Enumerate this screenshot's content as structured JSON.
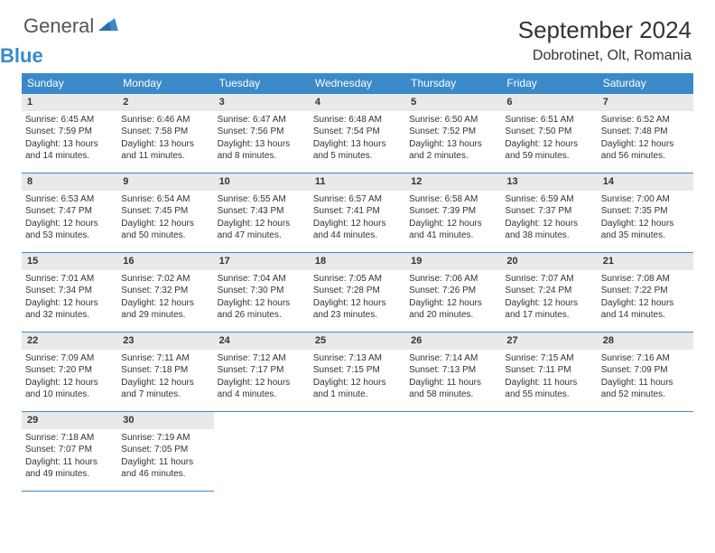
{
  "logo": {
    "general": "General",
    "blue": "Blue"
  },
  "title": "September 2024",
  "location": "Dobrotinet, Olt, Romania",
  "weekdays": [
    "Sunday",
    "Monday",
    "Tuesday",
    "Wednesday",
    "Thursday",
    "Friday",
    "Saturday"
  ],
  "colors": {
    "accent": "#3a8ac9",
    "daybg": "#e9e9e9"
  },
  "days": [
    {
      "n": "1",
      "sr": "6:45 AM",
      "ss": "7:59 PM",
      "dl": "13 hours and 14 minutes."
    },
    {
      "n": "2",
      "sr": "6:46 AM",
      "ss": "7:58 PM",
      "dl": "13 hours and 11 minutes."
    },
    {
      "n": "3",
      "sr": "6:47 AM",
      "ss": "7:56 PM",
      "dl": "13 hours and 8 minutes."
    },
    {
      "n": "4",
      "sr": "6:48 AM",
      "ss": "7:54 PM",
      "dl": "13 hours and 5 minutes."
    },
    {
      "n": "5",
      "sr": "6:50 AM",
      "ss": "7:52 PM",
      "dl": "13 hours and 2 minutes."
    },
    {
      "n": "6",
      "sr": "6:51 AM",
      "ss": "7:50 PM",
      "dl": "12 hours and 59 minutes."
    },
    {
      "n": "7",
      "sr": "6:52 AM",
      "ss": "7:48 PM",
      "dl": "12 hours and 56 minutes."
    },
    {
      "n": "8",
      "sr": "6:53 AM",
      "ss": "7:47 PM",
      "dl": "12 hours and 53 minutes."
    },
    {
      "n": "9",
      "sr": "6:54 AM",
      "ss": "7:45 PM",
      "dl": "12 hours and 50 minutes."
    },
    {
      "n": "10",
      "sr": "6:55 AM",
      "ss": "7:43 PM",
      "dl": "12 hours and 47 minutes."
    },
    {
      "n": "11",
      "sr": "6:57 AM",
      "ss": "7:41 PM",
      "dl": "12 hours and 44 minutes."
    },
    {
      "n": "12",
      "sr": "6:58 AM",
      "ss": "7:39 PM",
      "dl": "12 hours and 41 minutes."
    },
    {
      "n": "13",
      "sr": "6:59 AM",
      "ss": "7:37 PM",
      "dl": "12 hours and 38 minutes."
    },
    {
      "n": "14",
      "sr": "7:00 AM",
      "ss": "7:35 PM",
      "dl": "12 hours and 35 minutes."
    },
    {
      "n": "15",
      "sr": "7:01 AM",
      "ss": "7:34 PM",
      "dl": "12 hours and 32 minutes."
    },
    {
      "n": "16",
      "sr": "7:02 AM",
      "ss": "7:32 PM",
      "dl": "12 hours and 29 minutes."
    },
    {
      "n": "17",
      "sr": "7:04 AM",
      "ss": "7:30 PM",
      "dl": "12 hours and 26 minutes."
    },
    {
      "n": "18",
      "sr": "7:05 AM",
      "ss": "7:28 PM",
      "dl": "12 hours and 23 minutes."
    },
    {
      "n": "19",
      "sr": "7:06 AM",
      "ss": "7:26 PM",
      "dl": "12 hours and 20 minutes."
    },
    {
      "n": "20",
      "sr": "7:07 AM",
      "ss": "7:24 PM",
      "dl": "12 hours and 17 minutes."
    },
    {
      "n": "21",
      "sr": "7:08 AM",
      "ss": "7:22 PM",
      "dl": "12 hours and 14 minutes."
    },
    {
      "n": "22",
      "sr": "7:09 AM",
      "ss": "7:20 PM",
      "dl": "12 hours and 10 minutes."
    },
    {
      "n": "23",
      "sr": "7:11 AM",
      "ss": "7:18 PM",
      "dl": "12 hours and 7 minutes."
    },
    {
      "n": "24",
      "sr": "7:12 AM",
      "ss": "7:17 PM",
      "dl": "12 hours and 4 minutes."
    },
    {
      "n": "25",
      "sr": "7:13 AM",
      "ss": "7:15 PM",
      "dl": "12 hours and 1 minute."
    },
    {
      "n": "26",
      "sr": "7:14 AM",
      "ss": "7:13 PM",
      "dl": "11 hours and 58 minutes."
    },
    {
      "n": "27",
      "sr": "7:15 AM",
      "ss": "7:11 PM",
      "dl": "11 hours and 55 minutes."
    },
    {
      "n": "28",
      "sr": "7:16 AM",
      "ss": "7:09 PM",
      "dl": "11 hours and 52 minutes."
    },
    {
      "n": "29",
      "sr": "7:18 AM",
      "ss": "7:07 PM",
      "dl": "11 hours and 49 minutes."
    },
    {
      "n": "30",
      "sr": "7:19 AM",
      "ss": "7:05 PM",
      "dl": "11 hours and 46 minutes."
    }
  ],
  "labels": {
    "sunrise": "Sunrise: ",
    "sunset": "Sunset: ",
    "daylight": "Daylight: "
  }
}
